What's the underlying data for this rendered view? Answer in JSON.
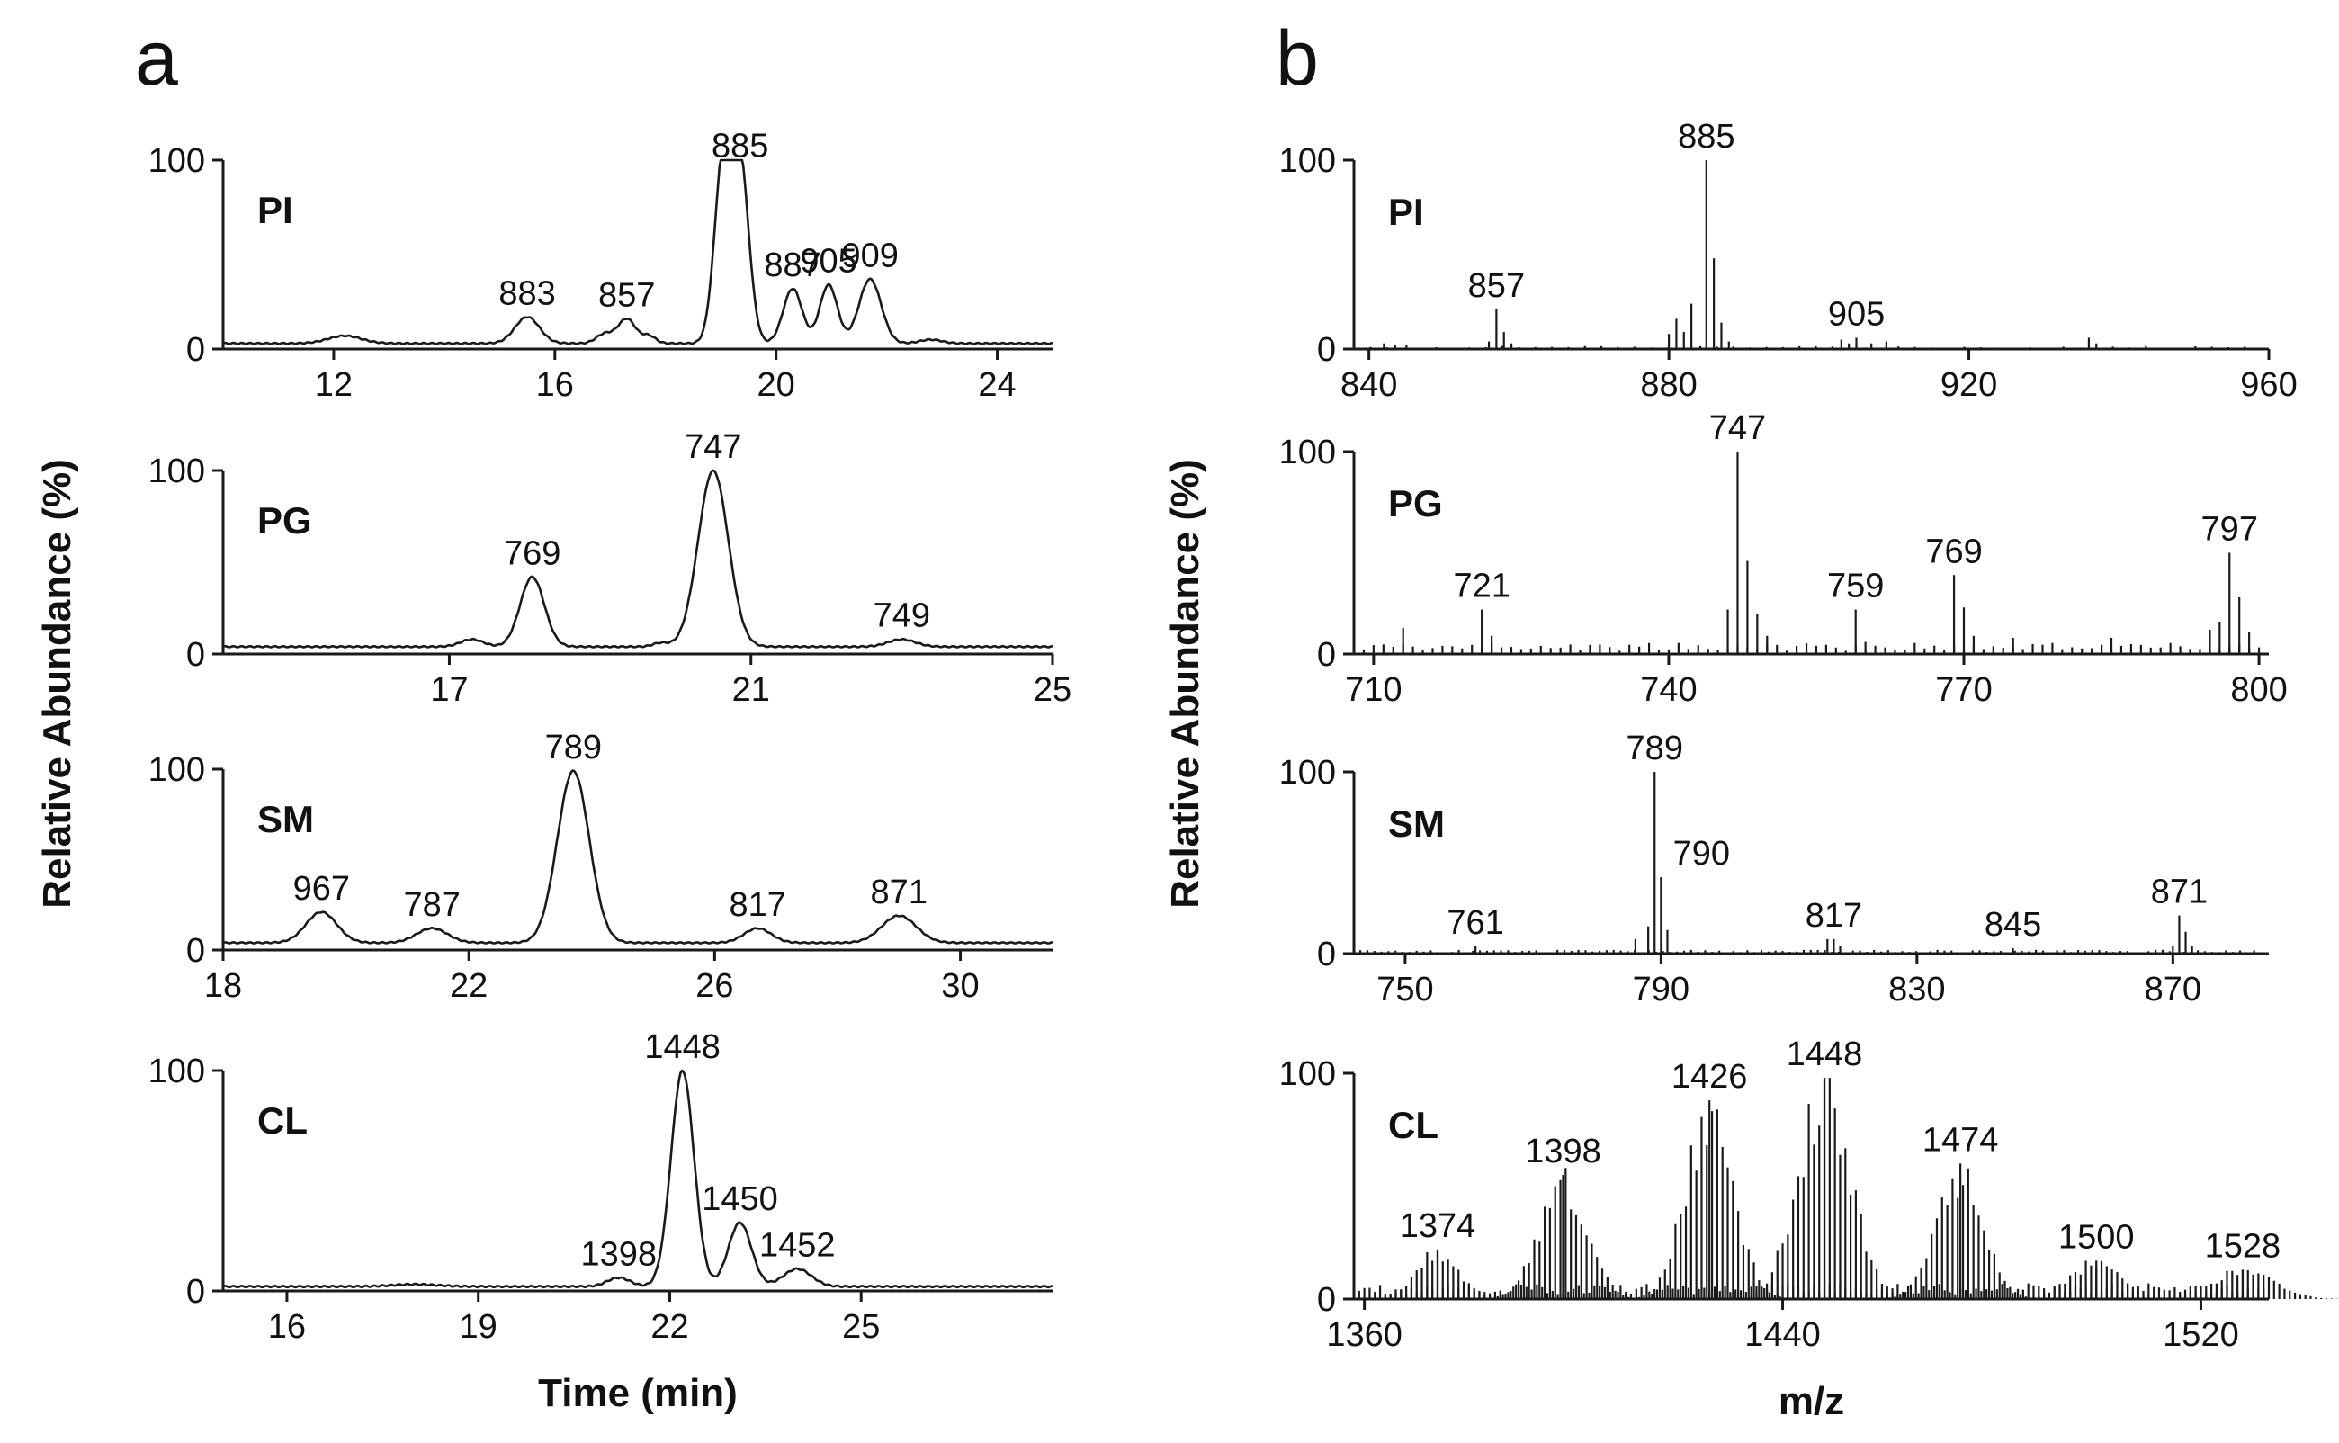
{
  "figure": {
    "panel_a_label": "a",
    "panel_b_label": "b"
  },
  "chart_data": [
    {
      "type": "line",
      "panel": "a",
      "name": "PI",
      "xlabel": "",
      "ylabel": "Relative Abundance (%)",
      "xlim": [
        10,
        25
      ],
      "ylim": [
        0,
        100
      ],
      "x_ticks": [
        12,
        16,
        20,
        24
      ],
      "y_ticks": [
        0,
        100
      ],
      "baseline": 3,
      "peaks": [
        {
          "x": 12.2,
          "y": 4,
          "w": 0.3,
          "label": ""
        },
        {
          "x": 15.5,
          "y": 14,
          "w": 0.22,
          "label": "883"
        },
        {
          "x": 16.9,
          "y": 5,
          "w": 0.15,
          "label": ""
        },
        {
          "x": 17.3,
          "y": 13,
          "w": 0.16,
          "label": "857"
        },
        {
          "x": 17.7,
          "y": 4,
          "w": 0.12,
          "label": ""
        },
        {
          "x": 19.05,
          "y": 97,
          "w": 0.16,
          "label": ""
        },
        {
          "x": 19.35,
          "y": 92,
          "w": 0.16,
          "label": "885"
        },
        {
          "x": 20.3,
          "y": 29,
          "w": 0.17,
          "label": "887"
        },
        {
          "x": 20.95,
          "y": 31,
          "w": 0.16,
          "label": "905"
        },
        {
          "x": 21.7,
          "y": 34,
          "w": 0.2,
          "label": "909"
        },
        {
          "x": 22.8,
          "y": 2,
          "w": 0.2,
          "label": ""
        }
      ]
    },
    {
      "type": "line",
      "panel": "a",
      "name": "PG",
      "xlabel": "",
      "ylabel": "",
      "xlim": [
        14,
        25
      ],
      "ylim": [
        0,
        100
      ],
      "x_ticks": [
        17,
        21,
        25
      ],
      "y_ticks": [
        0,
        100
      ],
      "baseline": 4,
      "peaks": [
        {
          "x": 17.3,
          "y": 4,
          "w": 0.15,
          "label": ""
        },
        {
          "x": 18.1,
          "y": 38,
          "w": 0.16,
          "label": "769"
        },
        {
          "x": 19.8,
          "y": 2,
          "w": 0.1,
          "label": ""
        },
        {
          "x": 20.5,
          "y": 96,
          "w": 0.2,
          "label": "747"
        },
        {
          "x": 23.0,
          "y": 4,
          "w": 0.18,
          "label": "749"
        }
      ]
    },
    {
      "type": "line",
      "panel": "a",
      "name": "SM",
      "xlabel": "",
      "ylabel": "",
      "xlim": [
        18,
        31.5
      ],
      "ylim": [
        0,
        100
      ],
      "x_ticks": [
        18,
        22,
        26,
        30
      ],
      "y_ticks": [
        0,
        100
      ],
      "baseline": 4,
      "peaks": [
        {
          "x": 19.6,
          "y": 17,
          "w": 0.25,
          "label": "967"
        },
        {
          "x": 21.4,
          "y": 8,
          "w": 0.25,
          "label": "787"
        },
        {
          "x": 23.7,
          "y": 95,
          "w": 0.26,
          "label": "789"
        },
        {
          "x": 26.7,
          "y": 8,
          "w": 0.22,
          "label": "817"
        },
        {
          "x": 29.0,
          "y": 15,
          "w": 0.28,
          "label": "871"
        }
      ]
    },
    {
      "type": "line",
      "panel": "a",
      "name": "CL",
      "xlabel": "Time (min)",
      "ylabel": "",
      "xlim": [
        15,
        28
      ],
      "ylim": [
        0,
        100
      ],
      "x_ticks": [
        16,
        19,
        22,
        25
      ],
      "y_ticks": [
        0,
        100
      ],
      "baseline": 2,
      "peaks": [
        {
          "x": 18.0,
          "y": 1,
          "w": 0.35,
          "label": ""
        },
        {
          "x": 21.2,
          "y": 4,
          "w": 0.18,
          "label": "1398"
        },
        {
          "x": 22.2,
          "y": 98,
          "w": 0.18,
          "label": "1448"
        },
        {
          "x": 23.1,
          "y": 29,
          "w": 0.18,
          "label": "1450"
        },
        {
          "x": 24.0,
          "y": 8,
          "w": 0.22,
          "label": "1452"
        }
      ]
    },
    {
      "type": "bar",
      "panel": "b",
      "name": "PI",
      "xlabel": "",
      "ylabel": "Relative Abundance (%)",
      "xlim": [
        838,
        960
      ],
      "ylim": [
        0,
        100
      ],
      "x_ticks": [
        840,
        880,
        920,
        960
      ],
      "y_ticks": [
        0,
        100
      ],
      "noise_range": [
        838,
        958
      ],
      "noise_step": 2.2,
      "noise_level": 1.2,
      "peaks": [
        {
          "x": 842,
          "y": 3,
          "label": ""
        },
        {
          "x": 843.5,
          "y": 2,
          "label": ""
        },
        {
          "x": 845,
          "y": 2,
          "label": ""
        },
        {
          "x": 856,
          "y": 4,
          "label": ""
        },
        {
          "x": 857,
          "y": 21,
          "label": "857"
        },
        {
          "x": 858,
          "y": 9,
          "label": ""
        },
        {
          "x": 859,
          "y": 3,
          "label": ""
        },
        {
          "x": 880,
          "y": 8,
          "label": ""
        },
        {
          "x": 881,
          "y": 16,
          "label": ""
        },
        {
          "x": 882,
          "y": 9,
          "label": ""
        },
        {
          "x": 883,
          "y": 24,
          "label": ""
        },
        {
          "x": 885,
          "y": 100,
          "label": "885"
        },
        {
          "x": 886,
          "y": 48,
          "label": ""
        },
        {
          "x": 887,
          "y": 14,
          "label": ""
        },
        {
          "x": 888,
          "y": 4,
          "label": ""
        },
        {
          "x": 903,
          "y": 5,
          "label": ""
        },
        {
          "x": 904,
          "y": 3,
          "label": ""
        },
        {
          "x": 905,
          "y": 6,
          "label": "905"
        },
        {
          "x": 907,
          "y": 3,
          "label": ""
        },
        {
          "x": 909,
          "y": 4,
          "label": ""
        },
        {
          "x": 936,
          "y": 6,
          "label": ""
        },
        {
          "x": 937,
          "y": 3,
          "label": ""
        }
      ]
    },
    {
      "type": "bar",
      "panel": "b",
      "name": "PG",
      "xlabel": "",
      "ylabel": "",
      "xlim": [
        708,
        801
      ],
      "ylim": [
        0,
        100
      ],
      "x_ticks": [
        710,
        740,
        770,
        800
      ],
      "y_ticks": [
        0,
        100
      ],
      "noise_range": [
        709,
        800
      ],
      "noise_step": 1.0,
      "noise_level": 4,
      "peaks": [
        {
          "x": 713,
          "y": 13,
          "label": ""
        },
        {
          "x": 721,
          "y": 22,
          "label": "721"
        },
        {
          "x": 722,
          "y": 9,
          "label": ""
        },
        {
          "x": 746,
          "y": 22,
          "label": ""
        },
        {
          "x": 747,
          "y": 100,
          "label": "747"
        },
        {
          "x": 748,
          "y": 46,
          "label": ""
        },
        {
          "x": 749,
          "y": 20,
          "label": ""
        },
        {
          "x": 750,
          "y": 9,
          "label": ""
        },
        {
          "x": 759,
          "y": 22,
          "label": "759"
        },
        {
          "x": 760,
          "y": 6,
          "label": ""
        },
        {
          "x": 769,
          "y": 39,
          "label": "769"
        },
        {
          "x": 770,
          "y": 23,
          "label": ""
        },
        {
          "x": 771,
          "y": 9,
          "label": ""
        },
        {
          "x": 775,
          "y": 8,
          "label": ""
        },
        {
          "x": 785,
          "y": 8,
          "label": ""
        },
        {
          "x": 795,
          "y": 12,
          "label": ""
        },
        {
          "x": 796,
          "y": 16,
          "label": ""
        },
        {
          "x": 797,
          "y": 50,
          "label": "797"
        },
        {
          "x": 798,
          "y": 28,
          "label": ""
        },
        {
          "x": 799,
          "y": 11,
          "label": ""
        }
      ]
    },
    {
      "type": "bar",
      "panel": "b",
      "name": "SM",
      "xlabel": "",
      "ylabel": "",
      "xlim": [
        742,
        885
      ],
      "ylim": [
        0,
        100
      ],
      "x_ticks": [
        750,
        790,
        830,
        870
      ],
      "y_ticks": [
        0,
        100
      ],
      "noise_range": [
        743,
        884
      ],
      "noise_step": 1.1,
      "noise_level": 1.5,
      "peaks": [
        {
          "x": 761,
          "y": 4,
          "label": "761"
        },
        {
          "x": 786,
          "y": 8,
          "label": ""
        },
        {
          "x": 788,
          "y": 15,
          "label": ""
        },
        {
          "x": 789,
          "y": 100,
          "label": "789"
        },
        {
          "x": 790,
          "y": 42,
          "label": "790"
        },
        {
          "x": 791,
          "y": 13,
          "label": ""
        },
        {
          "x": 816,
          "y": 8,
          "label": ""
        },
        {
          "x": 817,
          "y": 8,
          "label": "817"
        },
        {
          "x": 818,
          "y": 4,
          "label": ""
        },
        {
          "x": 845,
          "y": 3,
          "label": "845"
        },
        {
          "x": 870,
          "y": 4,
          "label": ""
        },
        {
          "x": 871,
          "y": 21,
          "label": "871"
        },
        {
          "x": 872,
          "y": 12,
          "label": ""
        },
        {
          "x": 873,
          "y": 4,
          "label": ""
        }
      ]
    },
    {
      "type": "bar",
      "panel": "b",
      "name": "CL",
      "xlabel": "m/z",
      "ylabel": "",
      "xlim": [
        1358,
        1533
      ],
      "ylim": [
        0,
        100
      ],
      "x_ticks": [
        1360,
        1440,
        1520
      ],
      "y_ticks": [
        0,
        100
      ],
      "noise_range": [
        1359,
        1532
      ],
      "noise_step": 1.0,
      "noise_level": 5,
      "clusters": [
        {
          "center": 1374,
          "height": 22,
          "spread": 4.0,
          "label": "1374"
        },
        {
          "center": 1398,
          "height": 55,
          "spread": 4.5,
          "label": "1398"
        },
        {
          "center": 1426,
          "height": 88,
          "spread": 4.5,
          "label": "1426"
        },
        {
          "center": 1448,
          "height": 98,
          "spread": 5.0,
          "label": "1448"
        },
        {
          "center": 1474,
          "height": 60,
          "spread": 4.5,
          "label": "1474"
        },
        {
          "center": 1500,
          "height": 17,
          "spread": 5.0,
          "label": "1500"
        },
        {
          "center": 1528,
          "height": 13,
          "spread": 6.0,
          "label": "1528"
        }
      ]
    }
  ]
}
